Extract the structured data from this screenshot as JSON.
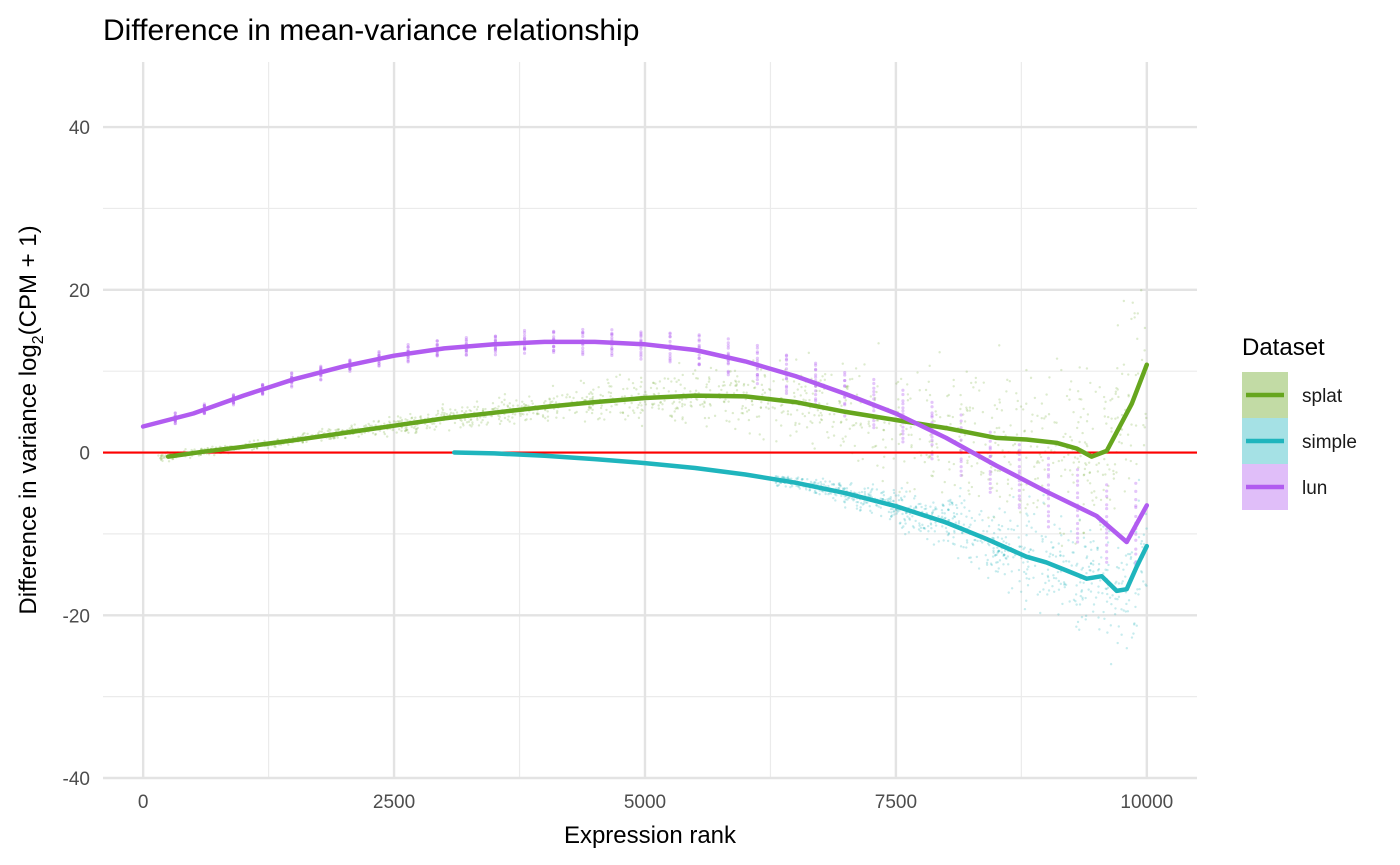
{
  "chart_data": {
    "type": "scatter",
    "title": "Difference in mean-variance relationship",
    "xlabel": "Expression rank",
    "ylabel": {
      "pre": "Difference in variance log",
      "sub": "2",
      "post": "(CPM + 1)"
    },
    "xlim": [
      -400,
      10500
    ],
    "ylim": [
      -40,
      48
    ],
    "x_ticks": [
      0,
      2500,
      5000,
      7500,
      10000
    ],
    "x_tick_labels": [
      "0",
      "2500",
      "5000",
      "7500",
      "10000"
    ],
    "y_ticks": [
      -40,
      -20,
      0,
      20,
      40
    ],
    "y_tick_labels": [
      "-40",
      "-20",
      "0",
      "20",
      "40"
    ],
    "grid": true,
    "reference_line": {
      "y": 0,
      "color": "#ff0000"
    },
    "legend": {
      "title": "Dataset",
      "position": "right"
    },
    "series": [
      {
        "name": "splat",
        "color": "#66a61e",
        "smooth_x": [
          250,
          600,
          1000,
          1500,
          2000,
          2500,
          3000,
          3500,
          4000,
          4500,
          5000,
          5500,
          6000,
          6500,
          7000,
          7500,
          8000,
          8500,
          8800,
          9100,
          9300,
          9450,
          9600,
          9700,
          9850,
          10000
        ],
        "smooth_y": [
          -0.5,
          0.1,
          0.7,
          1.5,
          2.4,
          3.3,
          4.2,
          4.9,
          5.6,
          6.2,
          6.7,
          7.0,
          6.9,
          6.2,
          5.0,
          4.0,
          3.0,
          1.8,
          1.6,
          1.2,
          0.5,
          -0.5,
          0.2,
          2.5,
          6.0,
          10.8
        ]
      },
      {
        "name": "simple",
        "color": "#1fb5bd",
        "smooth_x": [
          3100,
          3500,
          4000,
          4500,
          5000,
          5500,
          6000,
          6500,
          7000,
          7500,
          8000,
          8400,
          8800,
          9000,
          9200,
          9400,
          9550,
          9700,
          9800,
          9900,
          10000
        ],
        "smooth_y": [
          0,
          -0.1,
          -0.4,
          -0.8,
          -1.3,
          -1.9,
          -2.7,
          -3.7,
          -5.0,
          -6.6,
          -8.6,
          -10.6,
          -12.8,
          -13.5,
          -14.5,
          -15.5,
          -15.2,
          -17.0,
          -16.8,
          -14.0,
          -11.5
        ]
      },
      {
        "name": "lun",
        "color": "#b15cf0",
        "smooth_x": [
          0,
          500,
          1000,
          1500,
          2000,
          2500,
          3000,
          3500,
          4000,
          4500,
          5000,
          5500,
          6000,
          6500,
          7000,
          7500,
          8000,
          8500,
          9000,
          9500,
          9800,
          10000
        ],
        "smooth_y": [
          3.2,
          4.8,
          7.0,
          9.0,
          10.6,
          11.9,
          12.8,
          13.3,
          13.6,
          13.6,
          13.3,
          12.6,
          11.2,
          9.4,
          7.2,
          4.8,
          1.8,
          -1.6,
          -4.8,
          -7.8,
          -11.0,
          -6.5
        ]
      }
    ]
  }
}
